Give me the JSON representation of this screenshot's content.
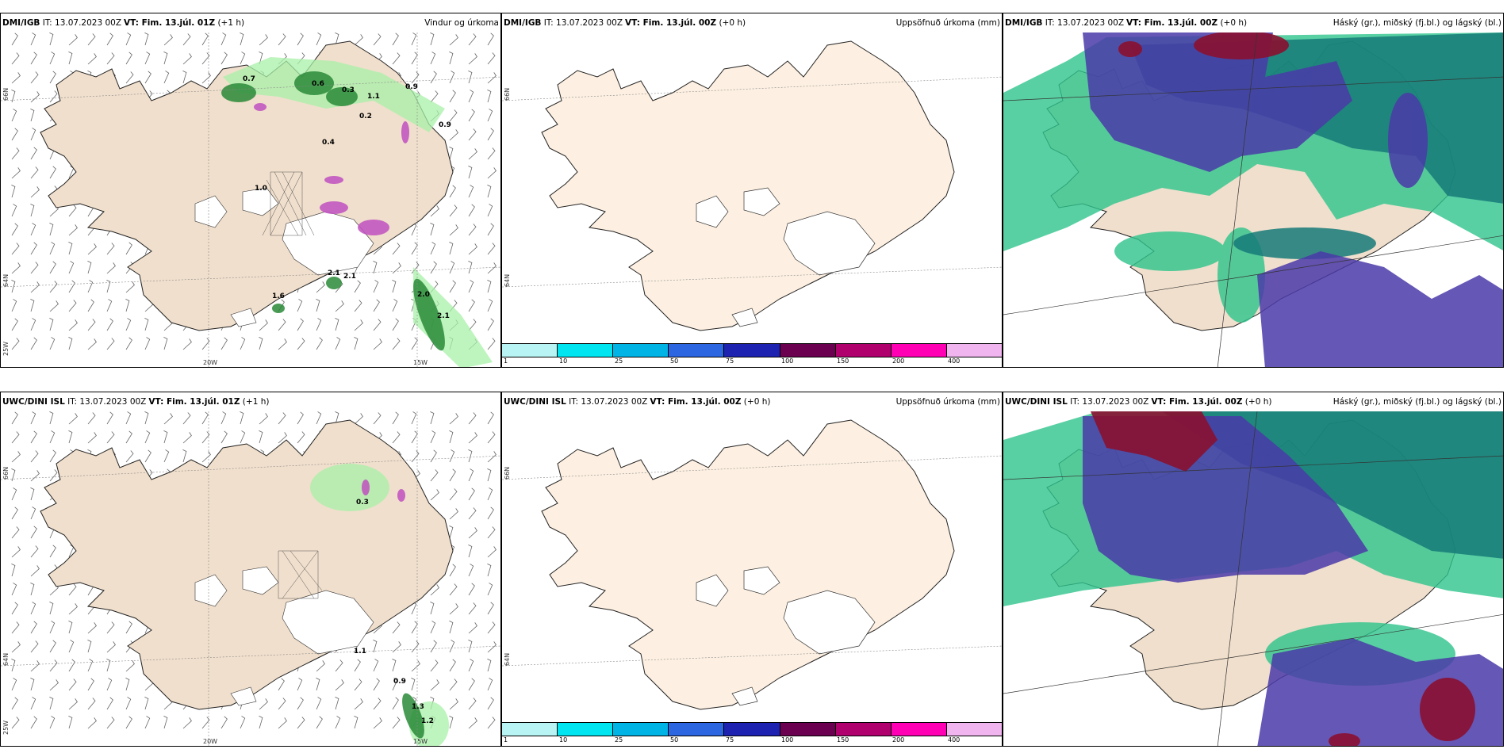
{
  "panels": [
    {
      "id": "dmi-wind",
      "source": "DMI/IGB",
      "it": "IT: 13.07.2023 00Z",
      "vt": "VT: Fim. 13.júl. 01Z",
      "lead": "(+1 h)",
      "title": "Vindur og úrkoma"
    },
    {
      "id": "dmi-acc",
      "source": "DMI/IGB",
      "it": "IT: 13.07.2023 00Z",
      "vt": "VT: Fim. 13.júl. 00Z",
      "lead": "(+0 h)",
      "title": "Uppsöfnuð úrkoma (mm)"
    },
    {
      "id": "dmi-cloud",
      "source": "DMI/IGB",
      "it": "IT: 13.07.2023 00Z",
      "vt": "VT: Fim. 13.júl. 00Z",
      "lead": "(+0 h)",
      "title": "Háský (gr.), miðský (fj.bl.) og lágský (bl.)"
    },
    {
      "id": "uwc-wind",
      "source": "UWC/DINI ISL",
      "it": "IT: 13.07.2023 00Z",
      "vt": "VT: Fim. 13.júl. 01Z",
      "lead": "(+1 h)",
      "title": ""
    },
    {
      "id": "uwc-acc",
      "source": "UWC/DINI ISL",
      "it": "IT: 13.07.2023 00Z",
      "vt": "VT: Fim. 13.júl. 00Z",
      "lead": "(+0 h)",
      "title": "Uppsöfnuð úrkoma (mm)"
    },
    {
      "id": "uwc-cloud",
      "source": "UWC/DINI ISL",
      "it": "IT: 13.07.2023 00Z",
      "vt": "VT: Fim. 13.júl. 00Z",
      "lead": "(+0 h)",
      "title": "Háský (gr.), miðský (fj.bl.) og lágský (bl.)"
    }
  ],
  "axes": {
    "lat_top": "66N",
    "lat_bottom": "64N",
    "lon_left": "25W",
    "lon_mid": "20W",
    "lon_right": "15W"
  },
  "colorbar": {
    "ticks": [
      "1",
      "10",
      "25",
      "50",
      "75",
      "100",
      "150",
      "200",
      "400"
    ],
    "colors": [
      "#b8f4f4",
      "#00e5f0",
      "#00b4e6",
      "#2c66e0",
      "#1e22b0",
      "#6c0050",
      "#b0006e",
      "#ff00b4",
      "#f0b4ee"
    ]
  },
  "precip_values_dmi": [
    "0.7",
    "0.6",
    "0.3",
    "1.1",
    "0.9",
    "0.9",
    "0.2",
    "0.4",
    "1.0",
    "2.1",
    "2.1",
    "1.6",
    "2.0",
    "2.1"
  ],
  "precip_values_uwc": [
    "0.3",
    "1.1",
    "0.9",
    "1.3",
    "1.2"
  ],
  "colors": {
    "land": "#f0dfcc",
    "land_acc": "#fdf0e2",
    "high_cloud": "#4a3aa8",
    "mid_cloud": "#167a78",
    "low_cloud": "#2ec48c",
    "red_cloud": "#8a1030",
    "precip_green": "#2a8a38",
    "precip_light": "#a8f0a8"
  }
}
